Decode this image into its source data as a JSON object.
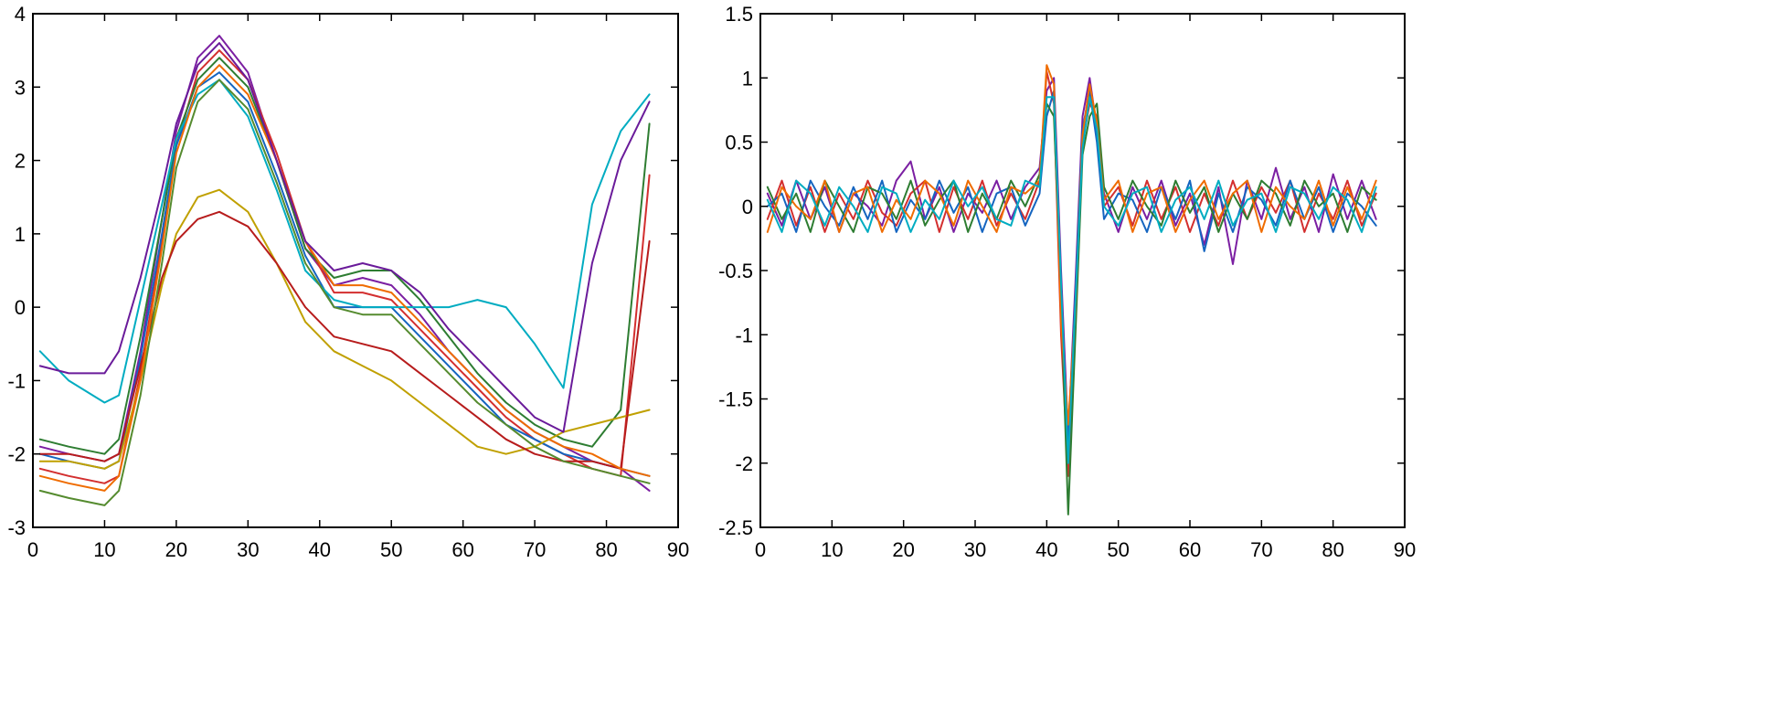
{
  "chart_data": [
    {
      "type": "line",
      "title": "",
      "xlabel": "",
      "ylabel": "",
      "xlim": [
        0,
        90
      ],
      "ylim": [
        -3,
        4
      ],
      "xticks": [
        "0",
        "10",
        "20",
        "30",
        "40",
        "50",
        "60",
        "70",
        "80",
        "90"
      ],
      "yticks": [
        "-3",
        "-2",
        "-1",
        "0",
        "1",
        "2",
        "3",
        "4"
      ],
      "grid": false,
      "x": [
        1,
        5,
        10,
        12,
        15,
        18,
        20,
        23,
        26,
        30,
        34,
        38,
        42,
        46,
        50,
        54,
        58,
        62,
        66,
        70,
        74,
        78,
        82,
        86
      ],
      "series": [
        {
          "color": "#7b1fa2",
          "values": [
            -1.9,
            -2.0,
            -2.1,
            -2.0,
            -0.6,
            1.2,
            2.4,
            3.4,
            3.7,
            3.2,
            2.0,
            0.8,
            0.3,
            0.4,
            0.3,
            -0.1,
            -0.6,
            -1.0,
            -1.4,
            -1.7,
            -1.9,
            -2.1,
            -2.2,
            -2.5
          ]
        },
        {
          "color": "#d32f2f",
          "values": [
            -2.2,
            -2.3,
            -2.4,
            -2.3,
            -0.9,
            0.9,
            2.2,
            3.2,
            3.5,
            3.1,
            2.1,
            0.9,
            0.2,
            0.2,
            0.1,
            -0.3,
            -0.7,
            -1.1,
            -1.5,
            -1.8,
            -2.0,
            -2.2,
            -2.3,
            1.8
          ]
        },
        {
          "color": "#1565c0",
          "values": [
            -2.0,
            -2.1,
            -2.2,
            -2.1,
            -0.7,
            1.0,
            2.2,
            3.0,
            3.2,
            2.8,
            1.8,
            0.7,
            0.0,
            0.0,
            0.0,
            -0.4,
            -0.8,
            -1.2,
            -1.6,
            -1.8,
            -2.0,
            -2.1,
            -2.2,
            -2.3
          ]
        },
        {
          "color": "#2e7d32",
          "values": [
            -1.8,
            -1.9,
            -2.0,
            -1.8,
            -0.4,
            1.2,
            2.3,
            3.1,
            3.4,
            3.0,
            2.0,
            0.8,
            0.4,
            0.5,
            0.5,
            0.1,
            -0.4,
            -0.9,
            -1.3,
            -1.6,
            -1.8,
            -1.9,
            -1.4,
            2.5
          ]
        },
        {
          "color": "#00acc1",
          "values": [
            -0.6,
            -1.0,
            -1.3,
            -1.2,
            0.1,
            1.4,
            2.3,
            2.9,
            3.1,
            2.6,
            1.6,
            0.5,
            0.1,
            0.0,
            0.0,
            0.0,
            0.0,
            0.1,
            0.0,
            -0.5,
            -1.1,
            1.4,
            2.4,
            2.9
          ]
        },
        {
          "color": "#c0a000",
          "values": [
            -2.1,
            -2.1,
            -2.2,
            -2.1,
            -1.0,
            0.3,
            1.0,
            1.5,
            1.6,
            1.3,
            0.6,
            -0.2,
            -0.6,
            -0.8,
            -1.0,
            -1.3,
            -1.6,
            -1.9,
            -2.0,
            -1.9,
            -1.7,
            -1.6,
            -1.5,
            -1.4
          ]
        },
        {
          "color": "#b71c1c",
          "values": [
            -2.0,
            -2.0,
            -2.1,
            -2.0,
            -0.8,
            0.4,
            0.9,
            1.2,
            1.3,
            1.1,
            0.6,
            0.0,
            -0.4,
            -0.5,
            -0.6,
            -0.9,
            -1.2,
            -1.5,
            -1.8,
            -2.0,
            -2.1,
            -2.1,
            -2.2,
            0.9
          ]
        },
        {
          "color": "#ef6c00",
          "values": [
            -2.3,
            -2.4,
            -2.5,
            -2.3,
            -1.0,
            0.8,
            2.1,
            3.0,
            3.3,
            2.9,
            2.0,
            0.9,
            0.3,
            0.3,
            0.2,
            -0.2,
            -0.6,
            -1.0,
            -1.4,
            -1.7,
            -1.9,
            -2.0,
            -2.2,
            -2.3
          ]
        },
        {
          "color": "#558b2f",
          "values": [
            -2.5,
            -2.6,
            -2.7,
            -2.5,
            -1.2,
            0.6,
            1.9,
            2.8,
            3.1,
            2.7,
            1.7,
            0.6,
            0.0,
            -0.1,
            -0.1,
            -0.5,
            -0.9,
            -1.3,
            -1.6,
            -1.9,
            -2.1,
            -2.2,
            -2.3,
            -2.4
          ]
        },
        {
          "color": "#6a1b9a",
          "values": [
            -0.8,
            -0.9,
            -0.9,
            -0.6,
            0.4,
            1.6,
            2.5,
            3.3,
            3.6,
            3.1,
            2.0,
            0.9,
            0.5,
            0.6,
            0.5,
            0.2,
            -0.3,
            -0.7,
            -1.1,
            -1.5,
            -1.7,
            0.6,
            2.0,
            2.8
          ]
        }
      ]
    },
    {
      "type": "line",
      "title": "",
      "xlabel": "",
      "ylabel": "",
      "xlim": [
        0,
        90
      ],
      "ylim": [
        -2.5,
        1.5
      ],
      "xticks": [
        "0",
        "10",
        "20",
        "30",
        "40",
        "50",
        "60",
        "70",
        "80",
        "90"
      ],
      "yticks": [
        "-2.5",
        "-2",
        "-1.5",
        "-1",
        "-0.5",
        "0",
        "0.5",
        "1",
        "1.5"
      ],
      "grid": false,
      "x": [
        1,
        3,
        5,
        7,
        9,
        11,
        13,
        15,
        17,
        19,
        21,
        23,
        25,
        27,
        29,
        31,
        33,
        35,
        37,
        39,
        40,
        41,
        42,
        43,
        44,
        45,
        46,
        47,
        48,
        50,
        52,
        54,
        56,
        58,
        60,
        62,
        64,
        66,
        68,
        70,
        72,
        74,
        76,
        78,
        80,
        82,
        84,
        86
      ],
      "series": [
        {
          "color": "#7b1fa2",
          "values": [
            0.1,
            -0.15,
            0.2,
            -0.1,
            0.15,
            -0.2,
            0.1,
            0.0,
            -0.15,
            0.2,
            0.35,
            -0.1,
            0.15,
            -0.2,
            0.1,
            -0.05,
            0.2,
            -0.1,
            0.15,
            0.3,
            0.9,
            1.0,
            -0.5,
            -1.8,
            -0.6,
            0.7,
            1.0,
            0.6,
            0.1,
            -0.2,
            0.15,
            -0.1,
            0.2,
            -0.15,
            0.1,
            -0.3,
            0.15,
            -0.45,
            0.2,
            -0.1,
            0.3,
            -0.1,
            0.15,
            -0.2,
            0.25,
            -0.1,
            0.2,
            -0.1
          ]
        },
        {
          "color": "#d32f2f",
          "values": [
            -0.1,
            0.2,
            -0.15,
            0.15,
            -0.2,
            0.1,
            -0.1,
            0.2,
            -0.05,
            -0.15,
            0.1,
            0.2,
            -0.2,
            0.15,
            -0.1,
            0.2,
            -0.15,
            0.1,
            -0.1,
            0.2,
            1.05,
            0.8,
            -1.0,
            -2.1,
            -0.9,
            0.5,
            0.8,
            0.7,
            0.0,
            0.15,
            -0.15,
            0.2,
            -0.1,
            0.15,
            -0.2,
            0.1,
            -0.15,
            0.2,
            -0.1,
            0.15,
            -0.05,
            0.2,
            -0.2,
            0.1,
            -0.1,
            0.2,
            -0.15,
            0.1
          ]
        },
        {
          "color": "#1565c0",
          "values": [
            0.0,
            0.1,
            -0.2,
            0.2,
            0.0,
            -0.15,
            0.15,
            -0.1,
            0.2,
            -0.2,
            0.05,
            -0.1,
            0.2,
            -0.05,
            0.15,
            -0.2,
            0.1,
            0.15,
            -0.15,
            0.1,
            0.7,
            0.9,
            -0.8,
            -1.9,
            -0.7,
            0.6,
            0.9,
            0.5,
            -0.1,
            0.1,
            0.05,
            -0.2,
            0.15,
            -0.1,
            0.2,
            -0.35,
            0.1,
            -0.2,
            0.15,
            0.05,
            -0.15,
            0.2,
            -0.1,
            0.15,
            -0.2,
            0.1,
            0.0,
            -0.15
          ]
        },
        {
          "color": "#2e7d32",
          "values": [
            0.15,
            -0.1,
            0.1,
            -0.2,
            0.2,
            0.0,
            -0.2,
            0.15,
            0.1,
            -0.1,
            0.2,
            -0.15,
            0.05,
            0.2,
            -0.2,
            0.1,
            -0.1,
            0.2,
            0.0,
            0.25,
            0.8,
            0.7,
            -0.7,
            -2.4,
            -1.0,
            0.4,
            0.7,
            0.8,
            0.15,
            -0.1,
            0.2,
            0.0,
            -0.15,
            0.2,
            -0.05,
            0.15,
            -0.2,
            0.1,
            -0.1,
            0.2,
            0.1,
            -0.15,
            0.2,
            0.0,
            0.1,
            -0.2,
            0.15,
            0.05
          ]
        },
        {
          "color": "#ef6c00",
          "values": [
            -0.2,
            0.15,
            0.0,
            -0.1,
            0.2,
            -0.2,
            0.1,
            0.15,
            -0.2,
            0.05,
            -0.1,
            0.2,
            0.1,
            -0.15,
            0.2,
            0.0,
            -0.2,
            0.15,
            0.1,
            0.2,
            1.1,
            0.95,
            -0.9,
            -1.7,
            -0.8,
            0.55,
            0.95,
            0.65,
            0.05,
            0.2,
            -0.2,
            0.1,
            0.15,
            -0.2,
            0.05,
            0.2,
            -0.1,
            0.1,
            0.2,
            -0.2,
            0.15,
            0.0,
            -0.1,
            0.2,
            -0.15,
            0.15,
            -0.1,
            0.2
          ]
        },
        {
          "color": "#00acc1",
          "values": [
            0.05,
            -0.2,
            0.2,
            0.1,
            -0.15,
            0.15,
            0.0,
            -0.2,
            0.15,
            0.1,
            -0.2,
            0.05,
            -0.1,
            0.2,
            0.0,
            0.15,
            -0.1,
            -0.15,
            0.2,
            0.15,
            0.85,
            0.85,
            -0.6,
            -2.0,
            -0.75,
            0.45,
            0.85,
            0.6,
            0.0,
            -0.15,
            0.1,
            0.15,
            -0.2,
            0.05,
            0.15,
            -0.1,
            0.2,
            -0.15,
            0.05,
            0.1,
            -0.2,
            0.15,
            0.1,
            -0.1,
            0.15,
            0.05,
            -0.2,
            0.15
          ]
        }
      ]
    }
  ]
}
